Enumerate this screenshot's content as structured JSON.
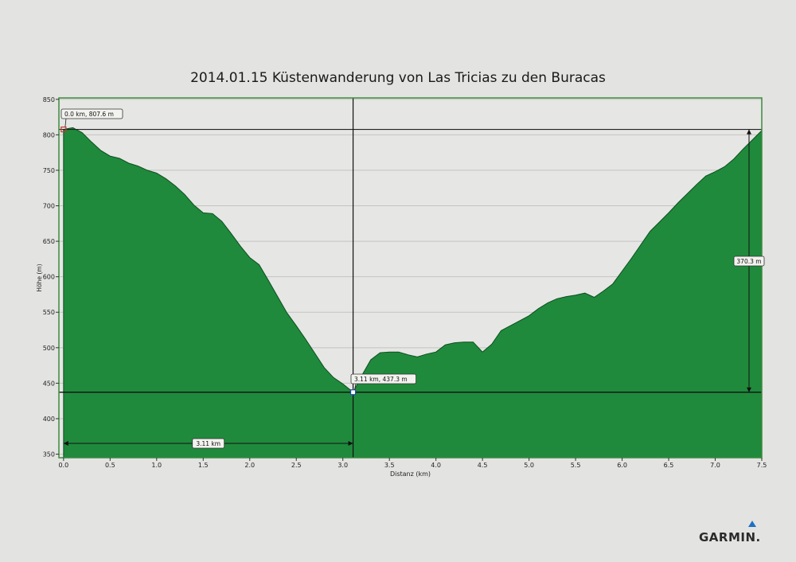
{
  "chart_data": {
    "type": "area",
    "title": "2014.01.15 Küstenwanderung von Las Tricias zu den Buracas",
    "xlabel": "Distanz  (km)",
    "ylabel": "Höhe (m)",
    "xlim": [
      -0.05,
      7.5
    ],
    "ylim": [
      345,
      852
    ],
    "x_ticks": [
      "0.0",
      "0.5",
      "1.0",
      "1.5",
      "2.0",
      "2.5",
      "3.0",
      "3.5",
      "4.0",
      "4.5",
      "5.0",
      "5.5",
      "6.0",
      "6.5",
      "7.0",
      "7.5"
    ],
    "y_ticks": [
      "350",
      "400",
      "450",
      "500",
      "550",
      "600",
      "650",
      "700",
      "750",
      "800",
      "850"
    ],
    "grid": true,
    "fill_color": "#1f8a3c",
    "series": [
      {
        "x": [
          0.0,
          0.1,
          0.2,
          0.3,
          0.4,
          0.5,
          0.6,
          0.7,
          0.8,
          0.9,
          1.0,
          1.1,
          1.2,
          1.3,
          1.4,
          1.5,
          1.6,
          1.7,
          1.8,
          1.9,
          2.0,
          2.1,
          2.2,
          2.3,
          2.4,
          2.5,
          2.6,
          2.7,
          2.8,
          2.9,
          3.0,
          3.11,
          3.2,
          3.3,
          3.4,
          3.5,
          3.6,
          3.7,
          3.8,
          3.9,
          4.0,
          4.1,
          4.2,
          4.3,
          4.4,
          4.5,
          4.6,
          4.7,
          4.8,
          4.9,
          5.0,
          5.1,
          5.2,
          5.3,
          5.4,
          5.5,
          5.6,
          5.7,
          5.8,
          5.9,
          6.0,
          6.1,
          6.2,
          6.3,
          6.4,
          6.5,
          6.6,
          6.7,
          6.8,
          6.9,
          7.0,
          7.1,
          7.2,
          7.3,
          7.4,
          7.5
        ],
        "y": [
          807.6,
          810,
          803,
          790,
          778,
          770,
          767,
          760,
          756,
          750,
          746,
          738,
          728,
          716,
          701,
          690,
          689,
          678,
          661,
          643,
          627,
          617,
          595,
          572,
          549,
          531,
          512,
          492,
          472,
          458,
          449,
          437.3,
          460,
          483,
          493,
          494,
          494,
          490,
          487,
          491,
          494,
          504,
          507,
          508,
          508,
          494,
          505,
          524,
          531,
          538,
          545,
          555,
          563,
          569,
          572,
          574,
          577,
          571,
          580,
          590,
          608,
          626,
          645,
          664,
          677,
          690,
          704,
          717,
          730,
          742,
          748,
          755,
          766,
          780,
          793,
          806
        ]
      }
    ],
    "annotations": [
      {
        "label": "0.0 km, 807.6 m",
        "x": 0.0,
        "y": 807.6
      },
      {
        "label": "3.11 km, 437.3 m",
        "x": 3.11,
        "y": 437.3
      },
      {
        "label": "3.11 km",
        "type": "distance",
        "x_from": 0.0,
        "x_to": 3.11
      },
      {
        "label": "370.3 m",
        "type": "height",
        "y_from": 437.3,
        "y_to": 807.6
      }
    ]
  },
  "brand": {
    "name": "GARMIN."
  }
}
